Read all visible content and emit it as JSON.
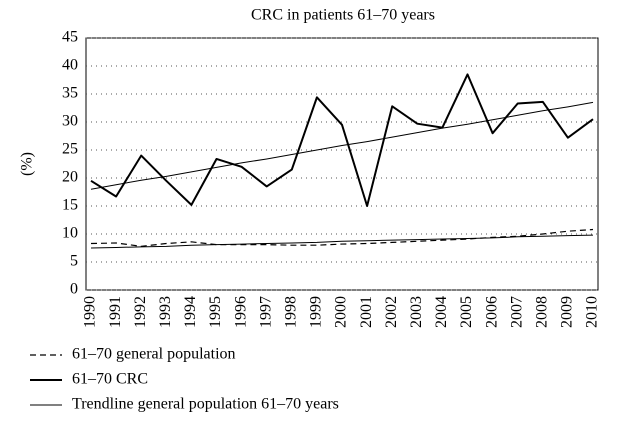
{
  "chart_data": {
    "type": "line",
    "title": "CRC in patients 61–70 years",
    "y_label": "(%)",
    "categories": [
      "1990",
      "1991",
      "1992",
      "1993",
      "1994",
      "1995",
      "1996",
      "1997",
      "1998",
      "1999",
      "2000",
      "2001",
      "2002",
      "2003",
      "2004",
      "2005",
      "2006",
      "2007",
      "2008",
      "2009",
      "2010"
    ],
    "ylim": [
      0,
      45
    ],
    "yticks": [
      0,
      5,
      10,
      15,
      20,
      25,
      30,
      35,
      40,
      45
    ],
    "grid": true,
    "legend": "bottom-left",
    "series": [
      {
        "name": "61–70 general population",
        "color": "#000000",
        "line_style": "dashed",
        "width": 1.2,
        "values": [
          8.3,
          8.4,
          7.8,
          8.3,
          8.6,
          8.1,
          8.1,
          8.1,
          8.0,
          8.0,
          8.2,
          8.3,
          8.5,
          8.7,
          8.9,
          9.1,
          9.4,
          9.6,
          10.0,
          10.5,
          10.8
        ]
      },
      {
        "name": "61–70 CRC",
        "color": "#000000",
        "line_style": "solid",
        "width": 2,
        "values": [
          19.5,
          16.7,
          24,
          19.5,
          15.2,
          23.4,
          22,
          18.5,
          21.5,
          34.4,
          29.5,
          15,
          32.8,
          29.7,
          29,
          38.5,
          28,
          33.3,
          33.6,
          27.2,
          30.5
        ]
      },
      {
        "name": "Trendline general population 61–70 years",
        "color": "#000000",
        "line_style": "solid",
        "width": 1,
        "values": [
          7.5,
          7.6,
          7.7,
          7.8,
          8,
          8.1,
          8.2,
          8.3,
          8.4,
          8.5,
          8.7,
          8.8,
          8.9,
          9,
          9.1,
          9.2,
          9.3,
          9.5,
          9.6,
          9.7,
          9.8
        ]
      },
      {
        "color": "#000000",
        "line_style": "solid",
        "width": 1,
        "values": [
          18,
          18.8,
          19.6,
          20.3,
          21.1,
          21.9,
          22.7,
          23.4,
          24.2,
          25,
          25.8,
          26.5,
          27.3,
          28.1,
          28.9,
          29.6,
          30.4,
          31.2,
          32,
          32.7,
          33.5
        ]
      }
    ]
  }
}
